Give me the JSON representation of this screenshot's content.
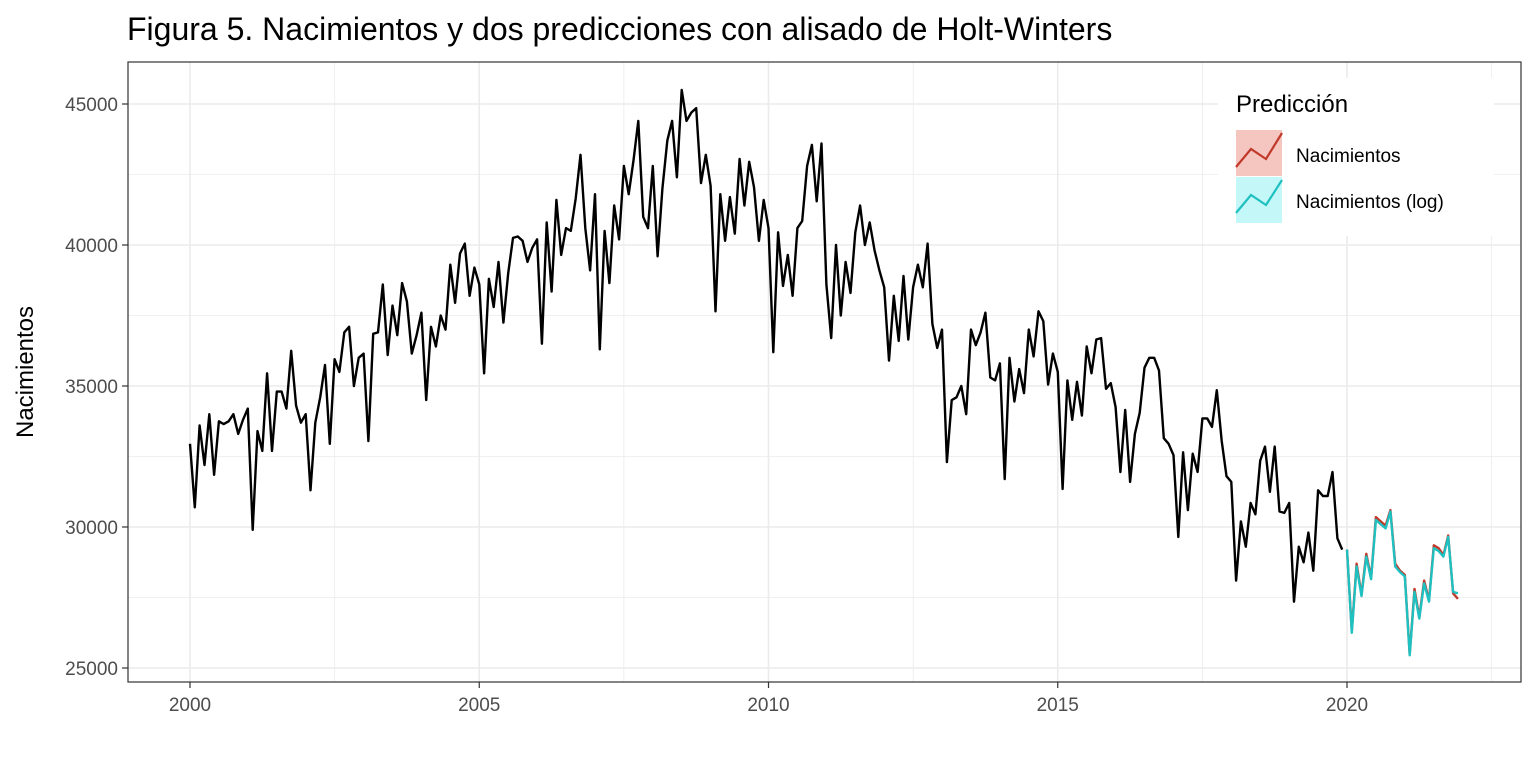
{
  "chart_data": {
    "type": "line",
    "title": "Figura 5. Nacimientos y dos predicciones con alisado de Holt-Winters",
    "xlabel": "",
    "ylabel": "Nacimientos",
    "xlim": [
      1999.0,
      2023.0
    ],
    "ylim": [
      24600,
      46500
    ],
    "x_ticks": [
      2000,
      2005,
      2010,
      2015,
      2020
    ],
    "x_tick_labels": [
      "2000",
      "2005",
      "2010",
      "2015",
      "2020"
    ],
    "y_ticks": [
      25000,
      30000,
      35000,
      40000,
      45000
    ],
    "y_tick_labels": [
      "25000",
      "30000",
      "35000",
      "40000",
      "45000"
    ],
    "grid": true,
    "legend": {
      "title": "Predicción",
      "position": "top-right",
      "entries": [
        {
          "label": "Nacimientos",
          "color": "#c0392b",
          "fill": "#f5c6c0"
        },
        {
          "label": "Nacimientos (log)",
          "color": "#1fc0c0",
          "fill": "#c4f7f7"
        }
      ]
    },
    "observed": {
      "start": "2000-01",
      "color": "#000000",
      "values": [
        32950,
        30700,
        33600,
        32200,
        34000,
        31850,
        33750,
        33650,
        33750,
        34000,
        33300,
        33800,
        34200,
        29900,
        33400,
        32700,
        35450,
        32700,
        34800,
        34800,
        34200,
        36250,
        34300,
        33700,
        34000,
        31300,
        33700,
        34600,
        35750,
        32950,
        35950,
        35500,
        36900,
        37100,
        35000,
        36000,
        36150,
        33050,
        36850,
        36900,
        38600,
        36100,
        37850,
        36800,
        38650,
        38000,
        36150,
        36800,
        37600,
        34500,
        37100,
        36400,
        37500,
        37000,
        39300,
        37950,
        39700,
        40050,
        38200,
        39200,
        38600,
        35450,
        38800,
        37800,
        39400,
        37250,
        39000,
        40250,
        40300,
        40150,
        39400,
        39900,
        40200,
        36500,
        40800,
        38350,
        41600,
        39650,
        40600,
        40500,
        41650,
        43200,
        40600,
        39100,
        41800,
        36300,
        40500,
        38650,
        41400,
        40200,
        42800,
        41800,
        43000,
        44400,
        41000,
        40600,
        42800,
        39600,
        42000,
        43700,
        44400,
        42400,
        45500,
        44400,
        44700,
        44850,
        42200,
        43200,
        42100,
        37650,
        41800,
        40150,
        41700,
        40400,
        43050,
        41400,
        42950,
        42050,
        40150,
        41600,
        40600,
        36200,
        40450,
        38550,
        39650,
        38200,
        40600,
        40850,
        42800,
        43550,
        41550,
        43600,
        38600,
        36700,
        40000,
        37500,
        39400,
        38300,
        40450,
        41400,
        40000,
        40800,
        39800,
        39100,
        38500,
        35900,
        38200,
        36600,
        38900,
        36650,
        38500,
        39300,
        38500,
        40050,
        37200,
        36350,
        37000,
        32300,
        34500,
        34600,
        35000,
        34000,
        37000,
        36450,
        36900,
        37600,
        35300,
        35200,
        35800,
        31700,
        36000,
        34450,
        35600,
        34750,
        37000,
        36050,
        37650,
        37300,
        35050,
        36150,
        35500,
        31350,
        35200,
        33800,
        35150,
        33950,
        36400,
        35450,
        36650,
        36700,
        34900,
        35100,
        34250,
        31950,
        34150,
        31600,
        33300,
        34050,
        35650,
        36000,
        36000,
        35550,
        33150,
        32950,
        32550,
        29650,
        32650,
        30600,
        32600,
        31950,
        33850,
        33850,
        33550,
        34850,
        33050,
        31800,
        31600,
        28100,
        30200,
        29300,
        30850,
        30450,
        32350,
        32850,
        31250,
        32850,
        30550,
        30500,
        30850,
        27350,
        29300,
        28750,
        29800,
        28450,
        31300,
        31100,
        31100,
        31950,
        29600,
        29200
      ]
    },
    "series": [
      {
        "name": "Nacimientos",
        "color": "#c0392b",
        "start": "2020-01",
        "values": [
          29200,
          26300,
          28700,
          27600,
          29050,
          28200,
          30350,
          30200,
          30050,
          30600,
          28700,
          28450,
          28300,
          25500,
          27800,
          26800,
          28100,
          27400,
          29350,
          29250,
          29000,
          29700,
          27650,
          27450
        ]
      },
      {
        "name": "Nacimientos (log)",
        "color": "#1fc0c0",
        "start": "2020-01",
        "values": [
          29200,
          26250,
          28600,
          27550,
          28950,
          28150,
          30250,
          30100,
          29950,
          30550,
          28600,
          28400,
          28250,
          25450,
          27700,
          26750,
          28000,
          27350,
          29250,
          29150,
          28950,
          29650,
          27700,
          27650
        ]
      }
    ]
  }
}
